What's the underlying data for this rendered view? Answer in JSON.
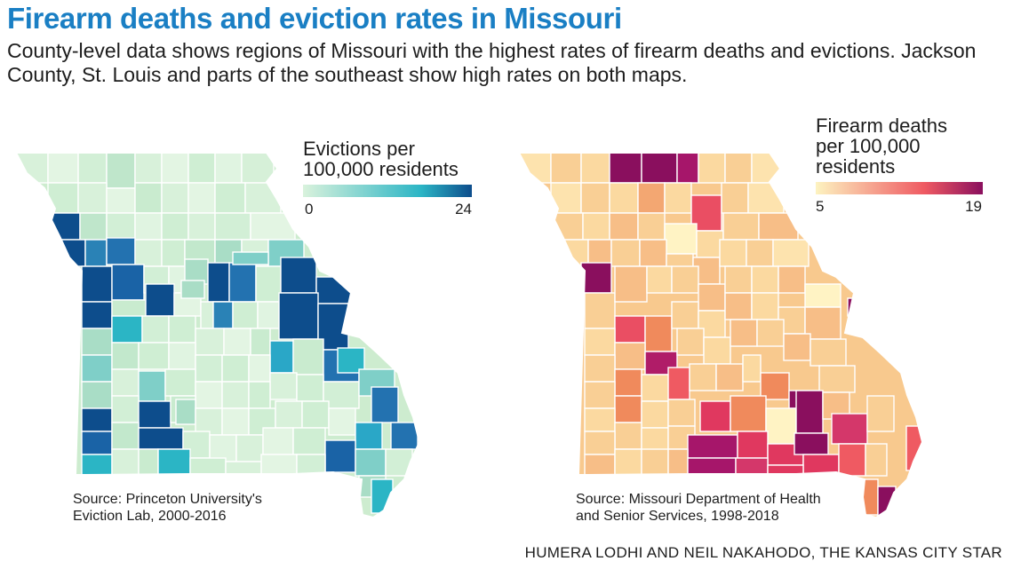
{
  "header": {
    "title": "Firearm deaths and eviction rates in Missouri",
    "subtitle": "County-level data shows regions of Missouri with the highest rates of firearm deaths and evictions. Jackson County, St. Louis and parts of the southeast show high rates on both maps."
  },
  "evictions_map": {
    "legend": {
      "title_line1": "Evictions per",
      "title_line2": "100,000 residents",
      "min_label": "0",
      "max_label": "24",
      "color_low": "#d9f2dc",
      "color_mid": "#2bb5c5",
      "color_high": "#0d4d8c"
    },
    "source_line1": "Source: Princeton University's",
    "source_line2": "Eviction Lab, 2000-2016"
  },
  "firearm_map": {
    "legend": {
      "title_line1": "Firearm deaths",
      "title_line2": "per 100,000",
      "title_line3": "residents",
      "min_label": "5",
      "max_label": "19",
      "color_low": "#fdf3c0",
      "color_mid": "#ef5a62",
      "color_high": "#8a0f5e"
    },
    "source_line1": "Source: Missouri Department of Health",
    "source_line2": "and Senior Services, 1998-2018"
  },
  "credit": "HUMERA LODHI AND NEIL NAKAHODO, THE KANSAS CITY STAR"
}
